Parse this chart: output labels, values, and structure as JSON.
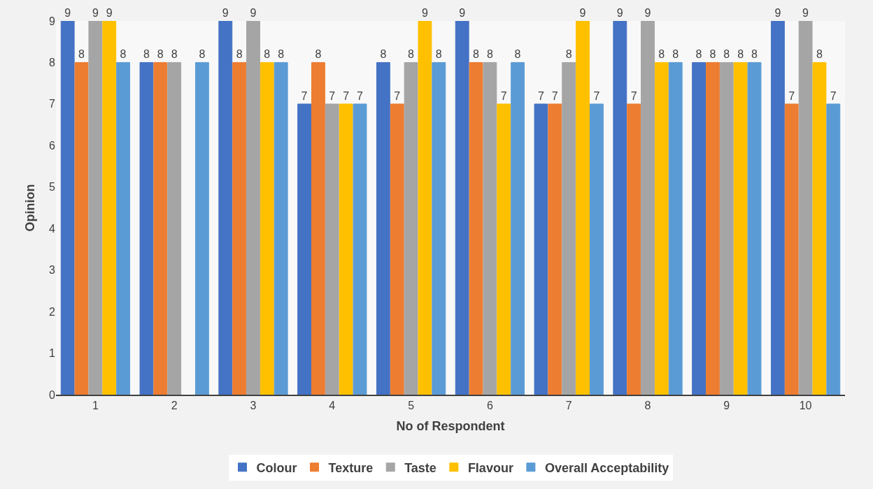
{
  "chart_data": {
    "type": "bar",
    "xlabel": "No of Respondent",
    "ylabel": "Opinion",
    "categories": [
      "1",
      "2",
      "3",
      "4",
      "5",
      "6",
      "7",
      "8",
      "9",
      "10"
    ],
    "series": [
      {
        "name": "Colour",
        "color": "#4472c4",
        "values": [
          9,
          8,
          9,
          7,
          8,
          9,
          7,
          9,
          8,
          9
        ]
      },
      {
        "name": "Texture",
        "color": "#ed7d31",
        "values": [
          8,
          8,
          8,
          8,
          7,
          8,
          7,
          7,
          8,
          7
        ]
      },
      {
        "name": "Taste",
        "color": "#a5a5a5",
        "values": [
          9,
          8,
          9,
          7,
          8,
          8,
          8,
          9,
          8,
          9
        ]
      },
      {
        "name": "Flavour",
        "color": "#ffc000",
        "values": [
          9,
          null,
          8,
          7,
          9,
          7,
          9,
          8,
          8,
          8
        ]
      },
      {
        "name": "Overall Acceptability",
        "color": "#5b9bd5",
        "values": [
          8,
          8,
          8,
          7,
          8,
          8,
          7,
          8,
          8,
          7
        ]
      }
    ],
    "ylim": [
      0,
      9
    ],
    "yticks": [
      0,
      1,
      2,
      3,
      4,
      5,
      6,
      7,
      8,
      9
    ],
    "data_labels": true,
    "legend": "bottom",
    "grid": false
  }
}
